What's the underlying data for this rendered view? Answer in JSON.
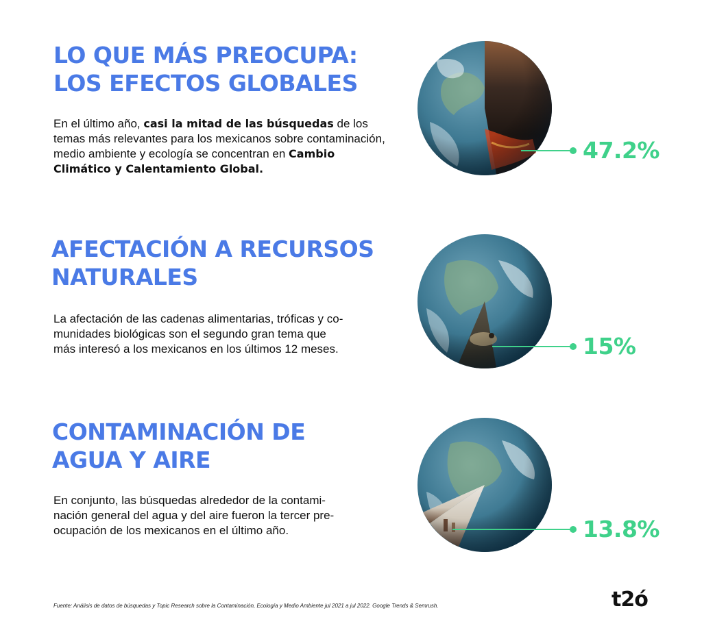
{
  "sections": [
    {
      "heading_line1": "LO QUE MÁS PREOCUPA:",
      "heading_line2": "LOS EFECTOS GLOBALES",
      "body_part1": "En el último año, ",
      "body_bold1": "casi la mitad de las búsquedas",
      "body_part2": " de los temas más relevantes para los mexicanos sobre contaminación, medio ambiente y ecología se concentran en ",
      "body_bold2": "Cambio Climático y Calentamiento Global.",
      "percent": "47.2%",
      "share": 0.472,
      "image_content": "wildfire"
    },
    {
      "heading_line1": "AFECTACIÓN A RECURSOS",
      "heading_line2": "NATURALES",
      "body_line1": "La afectación de las cadenas alimentarias, tróficas y co-",
      "body_line2": "munidades biológicas son el segundo gran tema que",
      "body_line3": "más interesó a los mexicanos en los últimos 12 meses.",
      "percent": "15%",
      "share": 0.15,
      "image_content": "animal"
    },
    {
      "heading_line1": "CONTAMINACIÓN DE",
      "heading_line2": "AGUA Y AIRE",
      "body_line1": "En conjunto, las búsquedas alrededor de la contami-",
      "body_line2": "nación general del agua y del aire fueron la tercer pre-",
      "body_line3": "ocupación de los mexicanos en el último año.",
      "percent": "13.8%",
      "share": 0.138,
      "image_content": "factory"
    }
  ],
  "footer": "Fuente: Análisis de datos de búsquedas y Topic Research sobre la Contaminación, Ecología y Medio Ambiente jul 2021 a jul 2022. Google Trends & Semrush.",
  "logo": "t2ó",
  "colors": {
    "heading": "#4a7ae6",
    "accent": "#3fd18a",
    "text": "#111111"
  }
}
